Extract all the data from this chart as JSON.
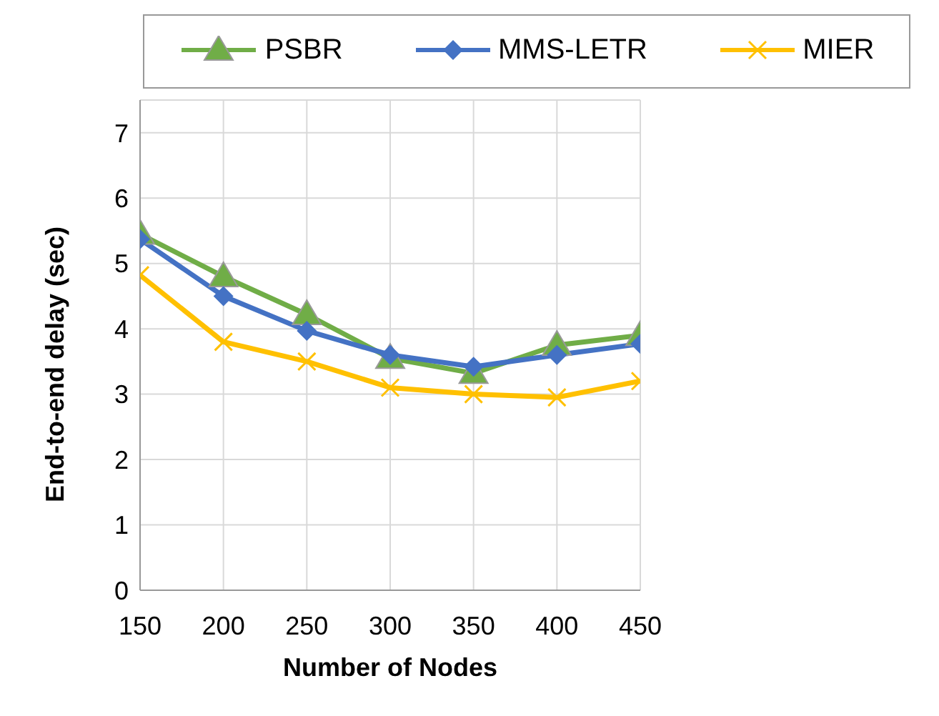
{
  "chart_data": {
    "type": "line",
    "xlabel": "Number of Nodes",
    "ylabel": "End-to-end delay (sec)",
    "x": [
      150,
      200,
      250,
      300,
      350,
      400,
      450
    ],
    "series": [
      {
        "name": "PSBR",
        "color": "#70ad47",
        "marker": "triangle",
        "values": [
          5.45,
          4.8,
          4.22,
          3.55,
          3.32,
          3.75,
          3.9
        ]
      },
      {
        "name": "MMS-LETR",
        "color": "#4472c4",
        "marker": "diamond",
        "values": [
          5.37,
          4.5,
          3.97,
          3.6,
          3.42,
          3.6,
          3.77
        ]
      },
      {
        "name": "MIER",
        "color": "#ffc000",
        "marker": "cross",
        "values": [
          4.82,
          3.8,
          3.5,
          3.1,
          3.0,
          2.95,
          3.2
        ]
      }
    ],
    "xlim": [
      150,
      450
    ],
    "xticks": [
      150,
      200,
      250,
      300,
      350,
      400,
      450
    ],
    "ylim": [
      0,
      7.5
    ],
    "yticks": [
      0,
      1,
      2,
      3,
      4,
      5,
      6,
      7
    ],
    "grid": true,
    "legend": "top",
    "line_style": "solid"
  }
}
